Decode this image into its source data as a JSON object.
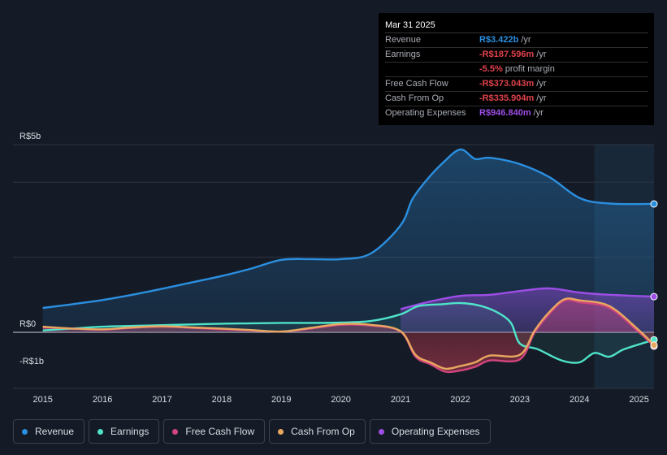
{
  "tooltip": {
    "date": "Mar 31 2025",
    "rows": [
      {
        "label": "Revenue",
        "value": "R$3.422b",
        "unit": "/yr",
        "color": "#2b8fe0"
      },
      {
        "label": "Earnings",
        "value": "-R$187.596m",
        "unit": "/yr",
        "color": "#e0424b"
      },
      {
        "label": "",
        "value": "-5.5%",
        "unit": "profit margin",
        "color": "#e0424b"
      },
      {
        "label": "Free Cash Flow",
        "value": "-R$373.043m",
        "unit": "/yr",
        "color": "#e0424b"
      },
      {
        "label": "Cash From Op",
        "value": "-R$335.904m",
        "unit": "/yr",
        "color": "#e0424b"
      },
      {
        "label": "Operating Expenses",
        "value": "R$946.840m",
        "unit": "/yr",
        "color": "#9d4ee6"
      }
    ]
  },
  "legend": [
    {
      "label": "Revenue",
      "color": "#2b8fe0"
    },
    {
      "label": "Earnings",
      "color": "#4fe3c9"
    },
    {
      "label": "Free Cash Flow",
      "color": "#d0457d"
    },
    {
      "label": "Cash From Op",
      "color": "#e9a860"
    },
    {
      "label": "Operating Expenses",
      "color": "#9d4ee6"
    }
  ],
  "chart_data": {
    "type": "area",
    "title": "",
    "unit": "R$ billions per year",
    "y_axis_labels": [
      "R$5b",
      "R$0",
      "-R$1b"
    ],
    "ylim": [
      -1.5,
      5
    ],
    "xlim": [
      2014.5,
      2025.25
    ],
    "x_ticks": [
      "2015",
      "2016",
      "2017",
      "2018",
      "2019",
      "2020",
      "2021",
      "2022",
      "2023",
      "2024",
      "2025"
    ],
    "forecast_shade_start": 2024.25,
    "series": [
      {
        "name": "Revenue",
        "color": "#2b8fe0",
        "points": [
          [
            2015.0,
            0.65
          ],
          [
            2015.5,
            0.75
          ],
          [
            2016.0,
            0.86
          ],
          [
            2016.5,
            1.0
          ],
          [
            2017.0,
            1.16
          ],
          [
            2017.5,
            1.33
          ],
          [
            2018.0,
            1.5
          ],
          [
            2018.5,
            1.7
          ],
          [
            2019.0,
            1.93
          ],
          [
            2019.5,
            1.95
          ],
          [
            2020.0,
            1.95
          ],
          [
            2020.5,
            2.1
          ],
          [
            2021.0,
            2.85
          ],
          [
            2021.2,
            3.55
          ],
          [
            2021.45,
            4.08
          ],
          [
            2021.7,
            4.5
          ],
          [
            2022.0,
            4.87
          ],
          [
            2022.25,
            4.62
          ],
          [
            2022.5,
            4.65
          ],
          [
            2023.0,
            4.48
          ],
          [
            2023.5,
            4.13
          ],
          [
            2024.0,
            3.58
          ],
          [
            2024.5,
            3.43
          ],
          [
            2025.25,
            3.42
          ]
        ]
      },
      {
        "name": "Operating Expenses",
        "color": "#9d4ee6",
        "points": [
          [
            2021.0,
            0.62
          ],
          [
            2021.5,
            0.82
          ],
          [
            2022.0,
            0.97
          ],
          [
            2022.5,
            1.0
          ],
          [
            2023.0,
            1.1
          ],
          [
            2023.5,
            1.17
          ],
          [
            2024.0,
            1.06
          ],
          [
            2024.5,
            1.0
          ],
          [
            2025.25,
            0.95
          ]
        ]
      },
      {
        "name": "Earnings",
        "color": "#4fe3c9",
        "points": [
          [
            2015.0,
            0.05
          ],
          [
            2015.5,
            0.1
          ],
          [
            2016.0,
            0.15
          ],
          [
            2016.5,
            0.17
          ],
          [
            2017.0,
            0.19
          ],
          [
            2017.5,
            0.21
          ],
          [
            2018.0,
            0.23
          ],
          [
            2018.5,
            0.24
          ],
          [
            2019.0,
            0.25
          ],
          [
            2019.5,
            0.25
          ],
          [
            2020.0,
            0.26
          ],
          [
            2020.5,
            0.3
          ],
          [
            2021.0,
            0.48
          ],
          [
            2021.3,
            0.7
          ],
          [
            2021.7,
            0.75
          ],
          [
            2022.0,
            0.78
          ],
          [
            2022.3,
            0.72
          ],
          [
            2022.6,
            0.55
          ],
          [
            2022.85,
            0.25
          ],
          [
            2023.0,
            -0.3
          ],
          [
            2023.3,
            -0.45
          ],
          [
            2023.7,
            -0.75
          ],
          [
            2024.0,
            -0.8
          ],
          [
            2024.25,
            -0.55
          ],
          [
            2024.5,
            -0.65
          ],
          [
            2024.75,
            -0.45
          ],
          [
            2025.25,
            -0.2
          ]
        ]
      },
      {
        "name": "Free Cash Flow",
        "color": "#d0457d",
        "points": [
          [
            2015.0,
            0.13
          ],
          [
            2015.5,
            0.1
          ],
          [
            2016.0,
            0.07
          ],
          [
            2016.5,
            0.12
          ],
          [
            2017.0,
            0.15
          ],
          [
            2017.5,
            0.12
          ],
          [
            2018.0,
            0.08
          ],
          [
            2018.5,
            0.05
          ],
          [
            2019.0,
            0.02
          ],
          [
            2019.5,
            0.1
          ],
          [
            2020.0,
            0.2
          ],
          [
            2020.5,
            0.18
          ],
          [
            2021.0,
            0.02
          ],
          [
            2021.25,
            -0.65
          ],
          [
            2021.5,
            -0.85
          ],
          [
            2021.75,
            -1.05
          ],
          [
            2022.0,
            -1.02
          ],
          [
            2022.25,
            -0.92
          ],
          [
            2022.5,
            -0.75
          ],
          [
            2023.0,
            -0.72
          ],
          [
            2023.25,
            0.0
          ],
          [
            2023.5,
            0.5
          ],
          [
            2023.75,
            0.85
          ],
          [
            2024.0,
            0.8
          ],
          [
            2024.5,
            0.65
          ],
          [
            2025.0,
            0.0
          ],
          [
            2025.25,
            -0.37
          ]
        ]
      },
      {
        "name": "Cash From Op",
        "color": "#e9a860",
        "points": [
          [
            2015.0,
            0.15
          ],
          [
            2015.5,
            0.1
          ],
          [
            2016.0,
            0.08
          ],
          [
            2016.5,
            0.13
          ],
          [
            2017.0,
            0.16
          ],
          [
            2017.5,
            0.13
          ],
          [
            2018.0,
            0.1
          ],
          [
            2018.5,
            0.06
          ],
          [
            2019.0,
            0.02
          ],
          [
            2019.5,
            0.12
          ],
          [
            2020.0,
            0.22
          ],
          [
            2020.5,
            0.2
          ],
          [
            2021.0,
            0.03
          ],
          [
            2021.25,
            -0.6
          ],
          [
            2021.5,
            -0.8
          ],
          [
            2021.75,
            -0.97
          ],
          [
            2022.0,
            -0.9
          ],
          [
            2022.25,
            -0.8
          ],
          [
            2022.5,
            -0.62
          ],
          [
            2023.0,
            -0.6
          ],
          [
            2023.25,
            0.05
          ],
          [
            2023.5,
            0.55
          ],
          [
            2023.75,
            0.88
          ],
          [
            2024.0,
            0.85
          ],
          [
            2024.5,
            0.7
          ],
          [
            2025.0,
            0.05
          ],
          [
            2025.25,
            -0.34
          ]
        ]
      }
    ]
  }
}
